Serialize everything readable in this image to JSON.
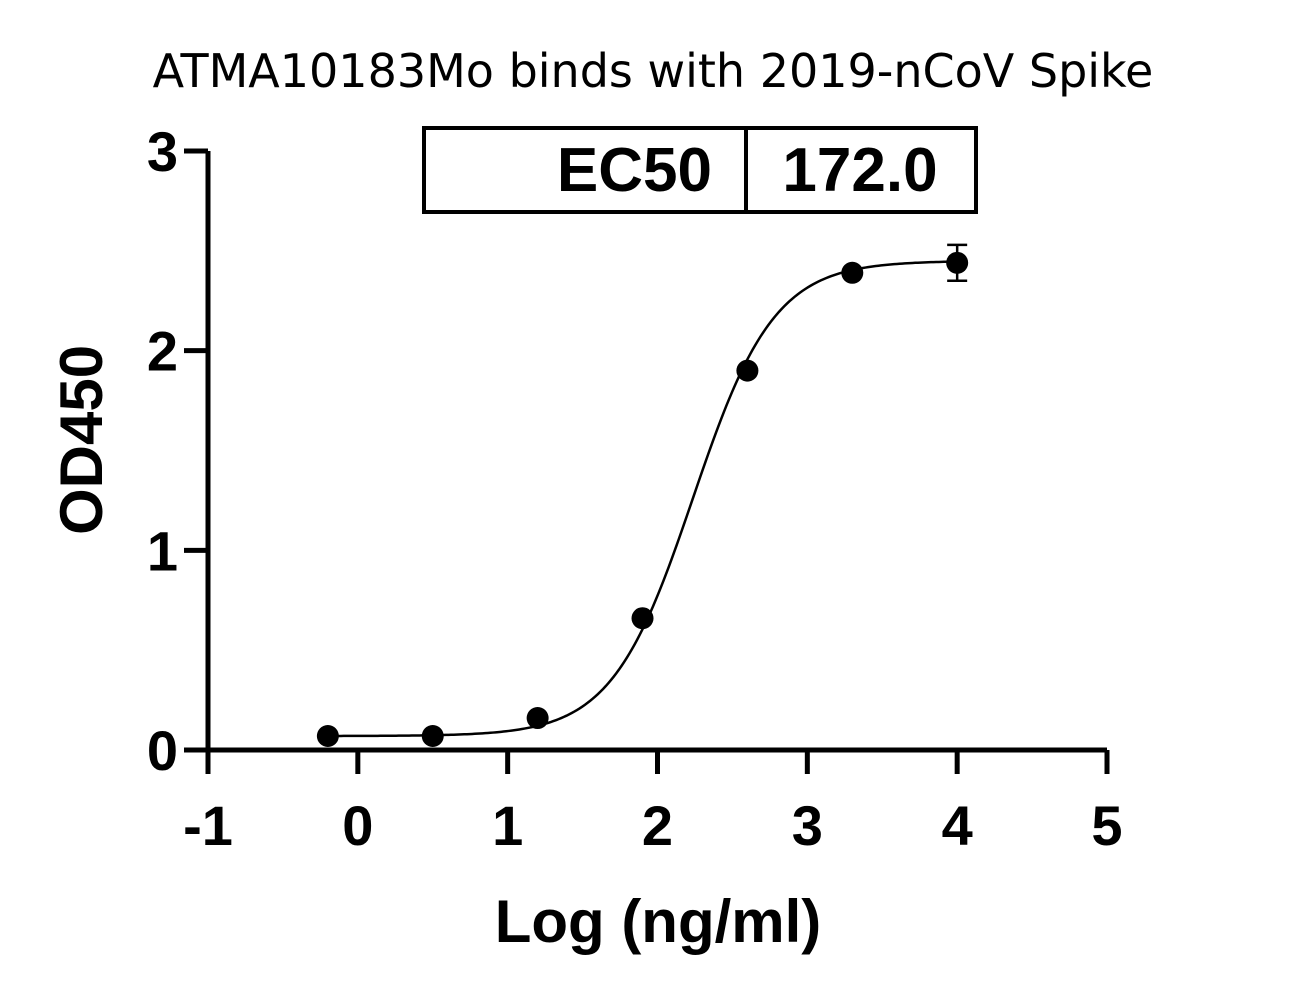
{
  "chart_data": {
    "type": "scatter",
    "title": "ATMA10183Mo binds with 2019-nCoV Spike",
    "xlabel": "Log (ng/ml)",
    "ylabel": "OD450",
    "xlim": [
      -1,
      5
    ],
    "ylim": [
      0,
      3
    ],
    "x_ticks": [
      -1,
      0,
      1,
      2,
      3,
      4,
      5
    ],
    "y_ticks": [
      0,
      1,
      2,
      3
    ],
    "grid": false,
    "legend": "none",
    "series": [
      {
        "points": [
          {
            "x": -0.2,
            "y": 0.07
          },
          {
            "x": 0.5,
            "y": 0.07
          },
          {
            "x": 1.2,
            "y": 0.16
          },
          {
            "x": 1.9,
            "y": 0.66
          },
          {
            "x": 2.6,
            "y": 1.9
          },
          {
            "x": 3.3,
            "y": 2.39
          },
          {
            "x": 4.0,
            "y": 2.44,
            "error": 0.09
          }
        ]
      }
    ],
    "fit": {
      "model": "4PL",
      "bottom": 0.07,
      "top": 2.45,
      "log_ec50": 2.236,
      "hill_slope": 1.6
    },
    "annotation": {
      "label": "EC50",
      "value": "172.0",
      "position": "top"
    },
    "colors": {
      "marker": "#000000",
      "line": "#000000"
    }
  }
}
